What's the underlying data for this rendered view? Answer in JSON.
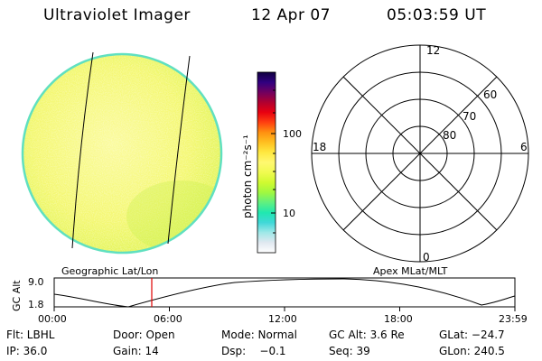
{
  "header": {
    "title": "Ultraviolet Imager",
    "date": "12 Apr 07",
    "time": "05:03:59 UT"
  },
  "colorbar": {
    "label": "photon cm⁻²s⁻¹",
    "ticks": [
      {
        "label": "100",
        "value": 100
      },
      {
        "label": "10",
        "value": 10
      }
    ],
    "colors": [
      "#ffffff",
      "#e0e8f0",
      "#a0e8e8",
      "#40d8d8",
      "#20e8b0",
      "#60f080",
      "#a0f840",
      "#d0fa30",
      "#f0fa50",
      "#fff870",
      "#ffe840",
      "#ffc020",
      "#ff9010",
      "#ff4010",
      "#e80010",
      "#b00030",
      "#700060",
      "#300080",
      "#100040"
    ]
  },
  "panels": {
    "geo_label": "Geographic Lat/Lon",
    "polar_label": "Apex MLat/MLT"
  },
  "polar": {
    "mlt_labels": {
      "top": "12",
      "left": "18",
      "right": "6",
      "bottom": "0"
    },
    "lat_labels": [
      "60",
      "70",
      "80"
    ]
  },
  "orbit": {
    "ylabel": "GC Alt",
    "y_ticks": [
      "9.0",
      "1.8"
    ],
    "x_ticks": [
      "00:00",
      "06:00",
      "12:00",
      "18:00",
      "23:59"
    ],
    "marker_time": "05:04"
  },
  "info": {
    "filter": "Flt: LBHL",
    "door": "Door: Open",
    "mode": "Mode: Normal",
    "gc_alt": "GC Alt: 3.6 Re",
    "glat": "GLat: −24.7",
    "ip": "IP: 36.0",
    "gain": "Gain: 14",
    "dsp": "Dsp:    −0.1",
    "seq": "Seq: 39",
    "glon": "GLon: 240.5"
  },
  "colors": {
    "disk_fill": "#f0f860",
    "disk_edge": "#60e0c0",
    "marker": "#e00000"
  }
}
